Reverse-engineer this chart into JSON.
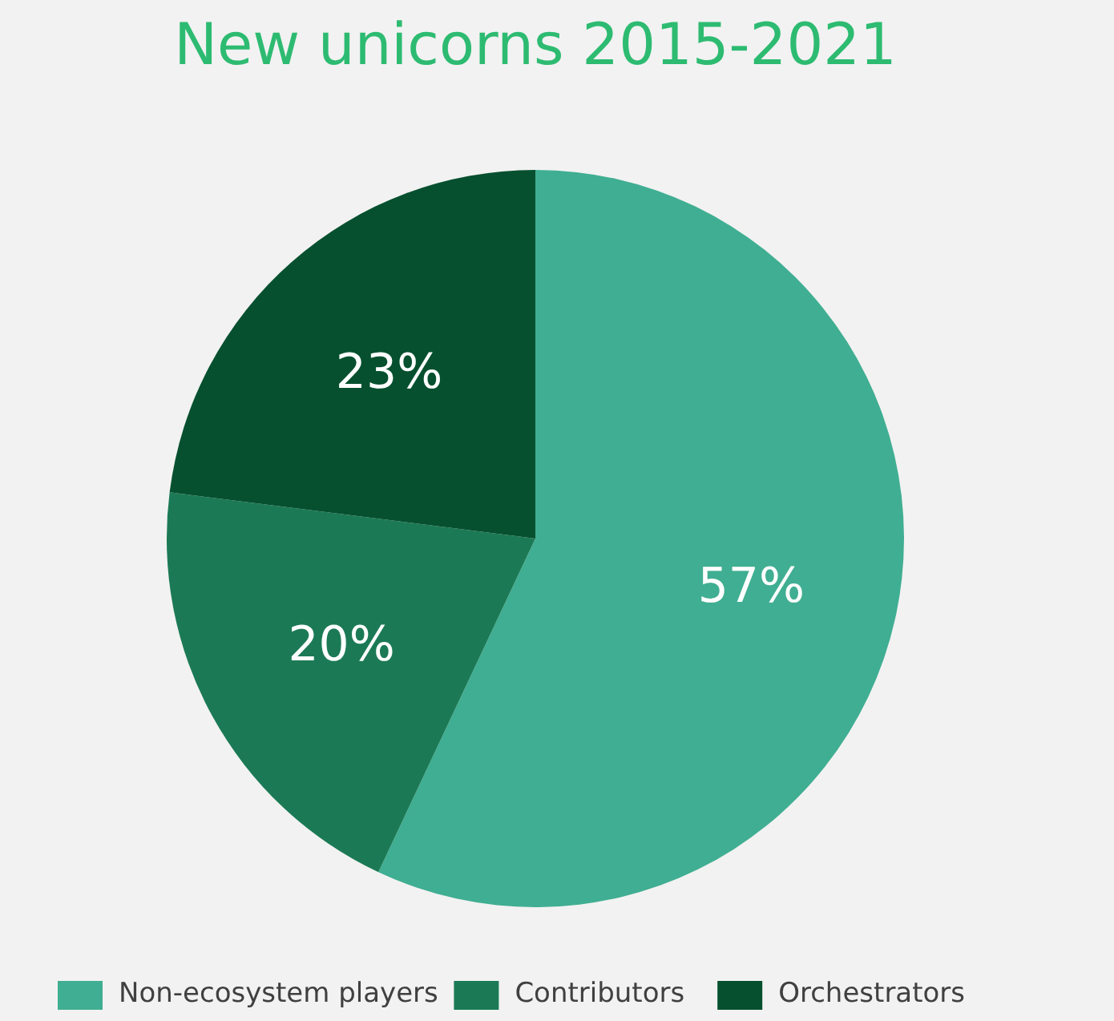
{
  "chart_data": {
    "type": "pie",
    "title": "New unicorns 2015-2021",
    "categories": [
      "Non-ecosystem players",
      "Contributors",
      "Orchestrators"
    ],
    "values": [
      57,
      20,
      23
    ],
    "colors": [
      "#40ae92",
      "#1b7a55",
      "#06502f"
    ],
    "value_labels": [
      "57%",
      "20%",
      "23%"
    ],
    "legend": "bottom"
  }
}
